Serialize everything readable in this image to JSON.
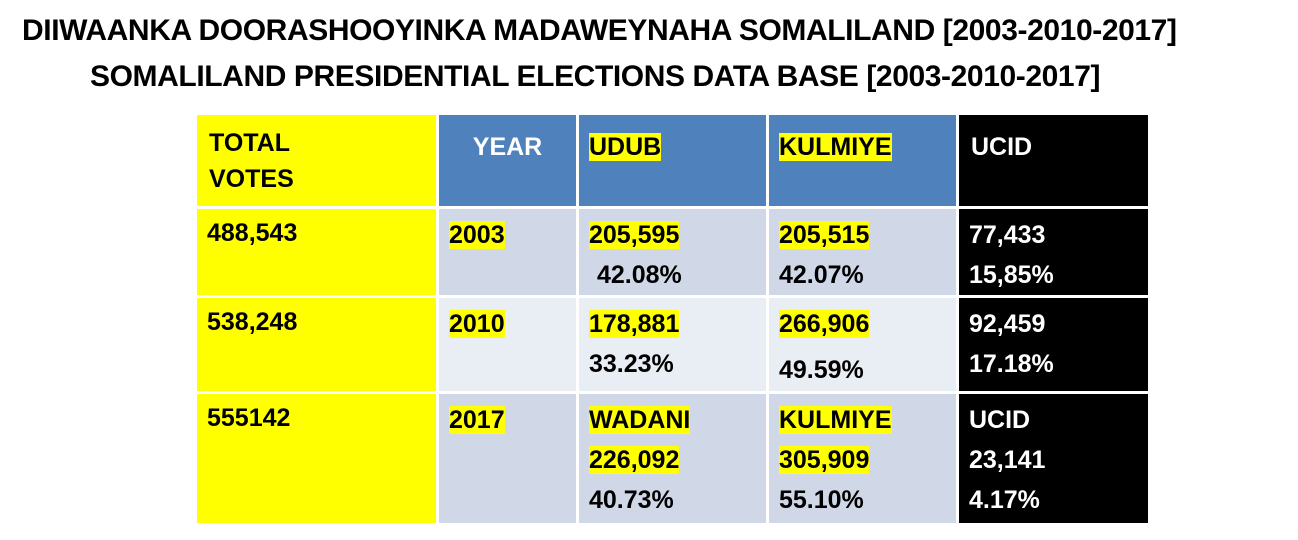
{
  "titles": {
    "line1": "DIIWAANKA DOORASHOOYINKA MADAWEYNAHA SOMALILAND [2003-2010-2017]",
    "line2": "SOMALILAND PRESIDENTIAL ELECTIONS DATA BASE [2003-2010-2017]"
  },
  "colors": {
    "yellow": "#ffff00",
    "header_blue": "#4f81bd",
    "black": "#000000",
    "pale_row_1": "#d0d8e8",
    "pale_row_2": "#e9edf4"
  },
  "table": {
    "headers": {
      "total_line1": "TOTAL",
      "total_line2": "VOTES",
      "year": "YEAR",
      "udub": "UDUB",
      "kulmiye": "KULMIYE",
      "ucid": "UCID"
    },
    "rows": [
      {
        "total": "488,543",
        "year": "2003",
        "col3": {
          "votes": "205,595",
          "pct": "42.08%"
        },
        "col4": {
          "votes": "205,515",
          "pct": "42.07%"
        },
        "col5": {
          "votes": "77,433",
          "pct": "15,85%"
        }
      },
      {
        "total": "538,248",
        "year": "2010",
        "col3": {
          "votes": "178,881",
          "pct": "33.23%"
        },
        "col4": {
          "votes": "266,906",
          "pct": "49.59%"
        },
        "col5": {
          "votes": "92,459",
          "pct": "17.18%"
        }
      },
      {
        "total": "555142",
        "year": "2017",
        "col3": {
          "party": "WADANI",
          "votes": "226,092",
          "pct": "40.73%"
        },
        "col4": {
          "party": "KULMIYE",
          "votes": "305,909",
          "pct": "55.10%"
        },
        "col5": {
          "party": "UCID",
          "votes": "23,141",
          "pct": "4.17%"
        }
      }
    ]
  }
}
